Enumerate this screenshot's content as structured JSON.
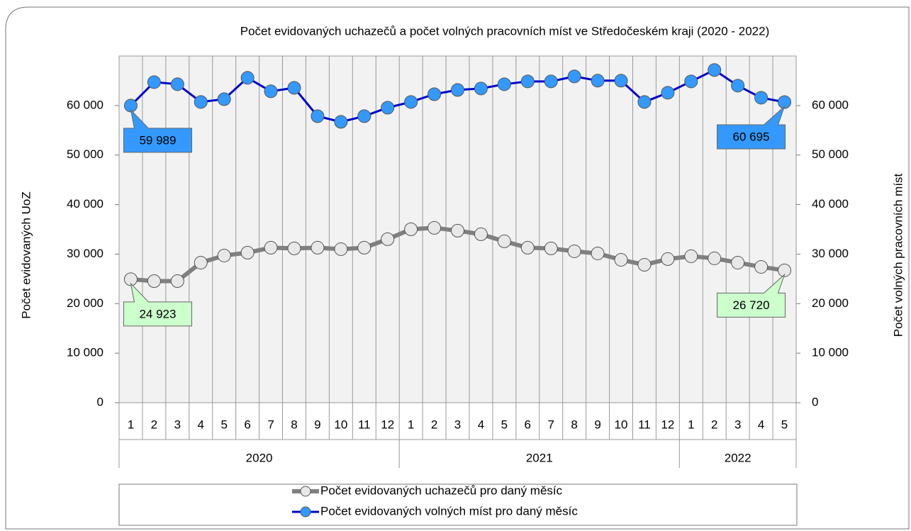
{
  "chart_data": {
    "type": "line",
    "title": "Počet evidovaných uchazečů a počet volných pracovních míst ve Středočeském kraji (2020 - 2022)",
    "y_label": "Počet evidovaných UoZ",
    "y2_label": "Počet volných pracovních míst",
    "categories": [
      "1",
      "2",
      "3",
      "4",
      "5",
      "6",
      "7",
      "8",
      "9",
      "10",
      "11",
      "12",
      "1",
      "2",
      "3",
      "4",
      "5",
      "6",
      "7",
      "8",
      "9",
      "10",
      "11",
      "12",
      "1",
      "2",
      "3",
      "4",
      "5"
    ],
    "year_groups": [
      {
        "label": "2020",
        "months": 12
      },
      {
        "label": "2021",
        "months": 12
      },
      {
        "label": "2022",
        "months": 5
      }
    ],
    "series": [
      {
        "name": "Počet evidovaných uchazečů pro daný měsíc",
        "color": "#808080",
        "marker_color": "#e8e8e8",
        "label_color": "#ccffcc",
        "values": [
          24923,
          24550,
          24550,
          28280,
          29710,
          30290,
          31290,
          31150,
          31290,
          31000,
          31290,
          33010,
          35020,
          35300,
          34730,
          34010,
          32580,
          31290,
          31150,
          30570,
          30140,
          28850,
          27850,
          29000,
          29570,
          29140,
          28280,
          27420,
          26720
        ],
        "value_labels": [
          "24 923",
          null,
          null,
          null,
          null,
          null,
          null,
          null,
          null,
          null,
          null,
          null,
          null,
          null,
          null,
          null,
          null,
          null,
          null,
          null,
          null,
          null,
          null,
          null,
          null,
          null,
          null,
          null,
          "26 720"
        ]
      },
      {
        "name": "Počet evidovaných volných míst pro daný měsíc",
        "color": "#0000cc",
        "marker_color": "#3399ff",
        "label_color": "#3399ff",
        "axis": "y2",
        "values": [
          59989,
          64730,
          64300,
          60720,
          61290,
          65590,
          62870,
          63580,
          57850,
          56700,
          57850,
          59570,
          60720,
          62290,
          63150,
          63440,
          64300,
          64870,
          64870,
          65880,
          65020,
          65020,
          60720,
          62580,
          64870,
          67170,
          64010,
          61580,
          60695
        ],
        "value_labels": [
          "59 989",
          null,
          null,
          null,
          null,
          null,
          null,
          null,
          null,
          null,
          null,
          null,
          null,
          null,
          null,
          null,
          null,
          null,
          null,
          null,
          null,
          null,
          null,
          null,
          null,
          null,
          null,
          null,
          "60 695"
        ]
      }
    ],
    "ylim": [
      0,
      70000
    ],
    "yticks": [
      0,
      {
        "value": 10000,
        "label": "10 000"
      },
      {
        "value": 20000,
        "label": "20 000"
      },
      {
        "value": 30000,
        "label": "30 000"
      },
      {
        "value": 40000,
        "label": "40 000"
      },
      {
        "value": 50000,
        "label": "50 000"
      },
      {
        "value": 60000,
        "label": "60 000"
      }
    ],
    "y2lim": [
      0,
      70000
    ],
    "y2ticks": [
      0,
      {
        "value": 10000,
        "label": "10 000"
      },
      {
        "value": 20000,
        "label": "20 000"
      },
      {
        "value": 30000,
        "label": "30 000"
      },
      {
        "value": 40000,
        "label": "40 000"
      },
      {
        "value": 50000,
        "label": "50 000"
      },
      {
        "value": 60000,
        "label": "60 000"
      }
    ],
    "grid": true
  }
}
